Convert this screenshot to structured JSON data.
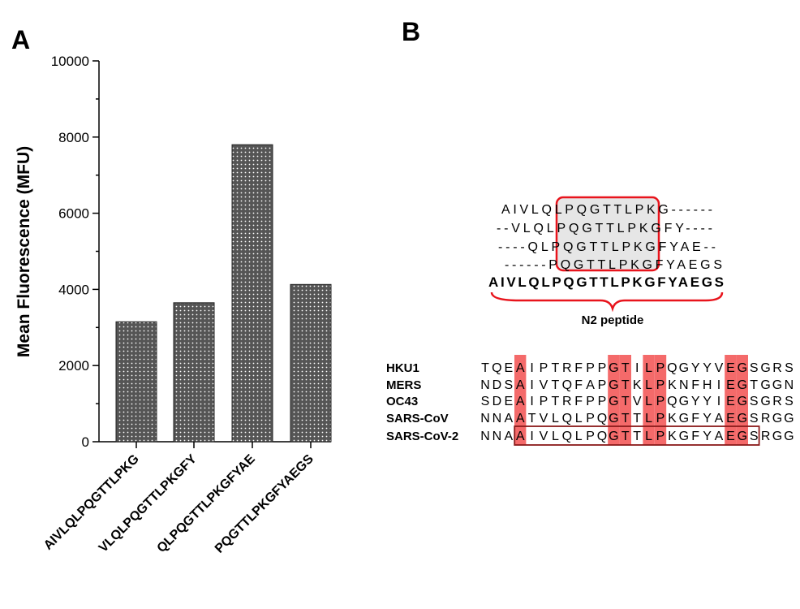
{
  "panel_labels": {
    "a": "A",
    "b": "B"
  },
  "chart_data": {
    "type": "bar",
    "title": "",
    "xlabel": "",
    "ylabel": "Mean Fluorescence (MFU)",
    "ylim": [
      0,
      10000
    ],
    "yticks": [
      "0",
      "2000",
      "4000",
      "6000",
      "8000",
      "10000"
    ],
    "minor_tick_step": 1000,
    "grid": false,
    "categories": [
      "AIVLQLPQGTTLPKG",
      "VLQLPQGTTLPKGFY",
      "QLPQGTTLPKGFYAE",
      "PQGTTLPKGFYAEGS"
    ],
    "values": [
      3150,
      3650,
      7800,
      4130
    ],
    "bar_fill": "#555555",
    "bar_pattern": "white dots"
  },
  "peptides": {
    "rows": [
      "AIVLQLPQGTTLPKG------",
      "--VLQLPQGTTLPKGFY----",
      "----QLPQGTTLPKGFYAE--",
      "------PQGTTLPKGFYAEGS"
    ],
    "full": "AIVLQLPQGTTLPKGFYAEGS",
    "label": "N2 peptide",
    "highlight_color": "#e8141c",
    "box_fill": "#e6e6e6"
  },
  "alignment": {
    "species": [
      {
        "name": "HKU1",
        "seq": "TQEAIPTRFPPGTILPQGYYVEGSGRS"
      },
      {
        "name": "MERS",
        "seq": "NDSAIVTQFAPGTKLPKNFHIEGTGGN"
      },
      {
        "name": "OC43",
        "seq": "SDEAIPTRFPPGTVLPQGYYIEGSGRS"
      },
      {
        "name": "SARS-CoV",
        "seq": "NNAATVLQLPQGTTLPKGFYAEGSRGG"
      },
      {
        "name": "SARS-CoV-2",
        "seq": "NNAAIVLQLPQGTTLPKGFYAEGSRGG"
      }
    ],
    "conserved_columns": [
      3,
      11,
      12,
      14,
      15,
      21,
      22
    ],
    "conserved_color": "#f46a6a",
    "boxed_row": "SARS-CoV-2",
    "boxed_range": [
      3,
      23
    ],
    "box_color": "#8b1a1a"
  }
}
